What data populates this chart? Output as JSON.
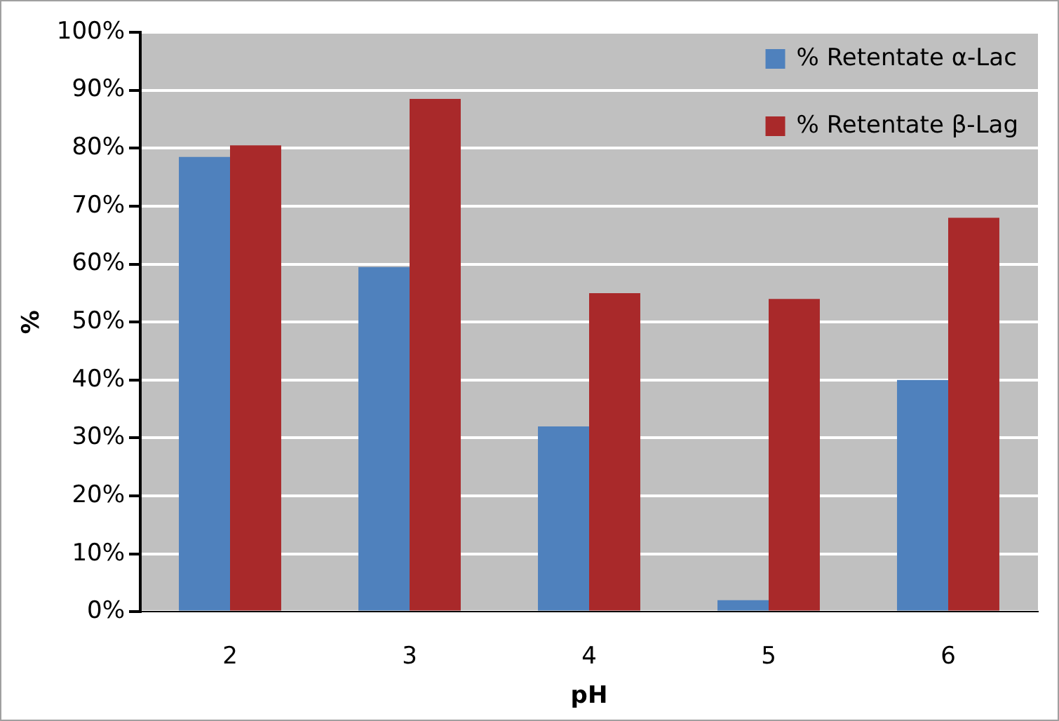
{
  "chart_data": {
    "type": "bar",
    "xlabel": "pH",
    "ylabel": "%",
    "categories": [
      "2",
      "3",
      "4",
      "5",
      "6"
    ],
    "series": [
      {
        "name": "% Retentate α-Lac",
        "color": "#4f81bd",
        "values": [
          78.5,
          59.5,
          32,
          2,
          40
        ]
      },
      {
        "name": "% Retentate β-Lag",
        "color": "#a9292a",
        "values": [
          80.5,
          88.5,
          55,
          54,
          68
        ]
      }
    ],
    "ylim": [
      0,
      100
    ],
    "yticks": [
      {
        "value": 0,
        "label": "0%"
      },
      {
        "value": 10,
        "label": "10%"
      },
      {
        "value": 20,
        "label": "20%"
      },
      {
        "value": 30,
        "label": "30%"
      },
      {
        "value": 40,
        "label": "40%"
      },
      {
        "value": 50,
        "label": "50%"
      },
      {
        "value": 60,
        "label": "60%"
      },
      {
        "value": 70,
        "label": "70%"
      },
      {
        "value": 80,
        "label": "80%"
      },
      {
        "value": 90,
        "label": "90%"
      },
      {
        "value": 100,
        "label": "100%"
      }
    ],
    "grid": "y",
    "legend": "top right"
  }
}
